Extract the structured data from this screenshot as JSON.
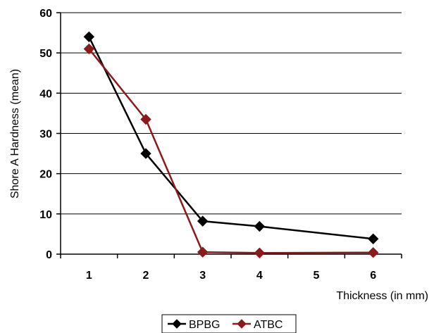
{
  "chart_data": {
    "type": "line",
    "x": [
      1,
      2,
      3,
      4,
      5,
      6
    ],
    "x_ticks": [
      "1",
      "2",
      "3",
      "4",
      "5",
      "6"
    ],
    "y_ticks": [
      "0",
      "10",
      "20",
      "30",
      "40",
      "50",
      "60"
    ],
    "ylim": [
      0,
      60
    ],
    "xlabel": "Thickness (in mm)",
    "ylabel": "Shore A Hardness (mean)",
    "grid": "horizontal",
    "legend_position": "bottom",
    "series": [
      {
        "name": "BPBG",
        "color": "#000000",
        "marker": "diamond",
        "points": [
          [
            1,
            54
          ],
          [
            2,
            25
          ],
          [
            3,
            8.2
          ],
          [
            4,
            6.9
          ],
          [
            6,
            3.8
          ]
        ]
      },
      {
        "name": "ATBC",
        "color": "#8b1a1a",
        "marker": "diamond",
        "points": [
          [
            1,
            51
          ],
          [
            2,
            33.5
          ],
          [
            3,
            0.5
          ],
          [
            4,
            0.3
          ],
          [
            6,
            0.4
          ]
        ]
      }
    ]
  }
}
